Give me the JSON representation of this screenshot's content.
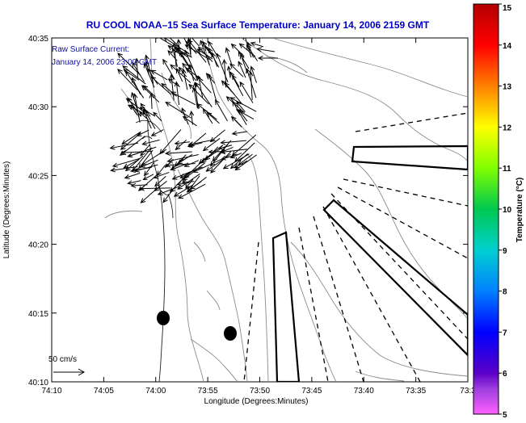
{
  "title": "RU COOL  NOAA–15  Sea Surface Temperature:  January 14, 2006 2159 GMT",
  "legend": {
    "line1": "Raw Surface Current:",
    "line2": "January 14, 2006 23:00 GMT"
  },
  "scale_label": "50 cm/s",
  "x_axis": {
    "title": "Longitude (Degrees:Minutes)",
    "ticks": [
      "74:10",
      "74:05",
      "74:00",
      "73:55",
      "73:50",
      "73:45",
      "73:40",
      "73:35",
      "73:3"
    ]
  },
  "y_axis": {
    "title": "Latitude (Degrees:Minutes)",
    "ticks": [
      "40:35",
      "40:30",
      "40:25",
      "40:20",
      "40:15",
      "40:10"
    ]
  },
  "colorbar": {
    "title": "Temperature (°C)",
    "ticks": [
      "15",
      "14",
      "13",
      "12",
      "11",
      "10",
      "9",
      "8",
      "7",
      "6",
      "5"
    ],
    "colors": [
      "#b40000",
      "#ff0000",
      "#ff8000",
      "#ffff00",
      "#80ff00",
      "#00c850",
      "#00d0d0",
      "#0080ff",
      "#0000ff",
      "#5a00c8",
      "#ff50ff"
    ]
  }
}
